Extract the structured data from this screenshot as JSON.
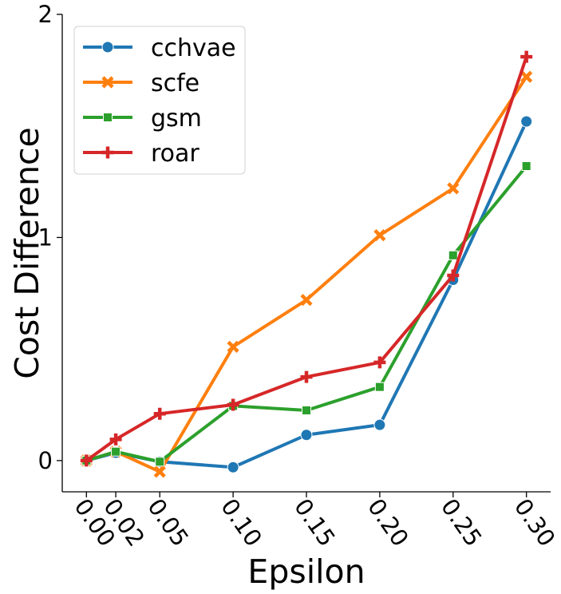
{
  "chart_data": {
    "type": "line",
    "x": [
      0.0,
      0.02,
      0.05,
      0.1,
      0.15,
      0.2,
      0.25,
      0.3
    ],
    "x_tick_labels": [
      "0.00",
      "0.02",
      "0.05",
      "0.10",
      "0.15",
      "0.20",
      "0.25",
      "0.30"
    ],
    "xlabel": "Epsilon",
    "ylabel": "Cost Difference",
    "y_ticks": [
      0,
      1,
      2
    ],
    "y_tick_labels": [
      "0",
      "1",
      "2"
    ],
    "ylim": [
      -0.14,
      2.0
    ],
    "grid": false,
    "legend_position": "top-left",
    "series": [
      {
        "name": "cchvae",
        "color": "#1f77b4",
        "marker": "circle",
        "values": [
          0.0,
          0.035,
          -0.005,
          -0.03,
          0.115,
          0.16,
          0.81,
          1.52
        ]
      },
      {
        "name": "scfe",
        "color": "#ff7f0e",
        "marker": "x",
        "values": [
          0.0,
          0.04,
          -0.05,
          0.51,
          0.72,
          1.01,
          1.22,
          1.72
        ]
      },
      {
        "name": "gsm",
        "color": "#2ca02c",
        "marker": "square",
        "values": [
          0.0,
          0.04,
          -0.005,
          0.245,
          0.225,
          0.33,
          0.92,
          1.32
        ]
      },
      {
        "name": "roar",
        "color": "#d62728",
        "marker": "plus",
        "values": [
          0.0,
          0.095,
          0.21,
          0.25,
          0.375,
          0.44,
          0.83,
          1.81
        ]
      }
    ]
  }
}
